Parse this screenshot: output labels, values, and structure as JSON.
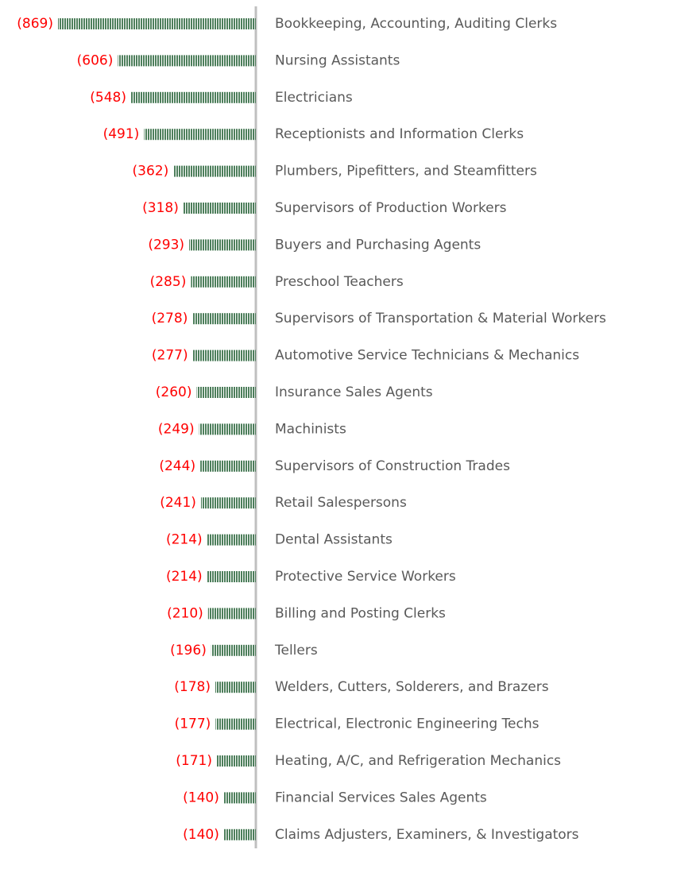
{
  "chart_data": {
    "type": "bar",
    "orientation": "horizontal",
    "categories": [
      "Bookkeeping, Accounting, Auditing Clerks",
      "Nursing Assistants",
      "Electricians",
      "Receptionists and Information Clerks",
      "Plumbers, Pipefitters, and Steamfitters",
      "Supervisors of Production Workers",
      "Buyers and Purchasing Agents",
      "Preschool Teachers",
      "Supervisors of Transportation & Material Workers",
      "Automotive Service Technicians & Mechanics",
      "Insurance Sales Agents",
      "Machinists",
      "Supervisors of Construction Trades",
      "Retail Salespersons",
      "Dental Assistants",
      "Protective Service Workers",
      "Billing and Posting Clerks",
      "Tellers",
      "Welders, Cutters, Solderers, and Brazers",
      "Electrical, Electronic Engineering Techs",
      "Heating, A/C, and Refrigeration Mechanics",
      "Financial Services Sales Agents",
      "Claims Adjusters, Examiners, & Investigators"
    ],
    "values": [
      -869,
      -606,
      -548,
      -491,
      -362,
      -318,
      -293,
      -285,
      -278,
      -277,
      -260,
      -249,
      -244,
      -241,
      -214,
      -214,
      -210,
      -196,
      -178,
      -177,
      -171,
      -140,
      -140
    ],
    "value_labels": [
      "(869)",
      "(606)",
      "(548)",
      "(491)",
      "(362)",
      "(318)",
      "(293)",
      "(285)",
      "(278)",
      "(277)",
      "(260)",
      "(249)",
      "(244)",
      "(241)",
      "(214)",
      "(214)",
      "(210)",
      "(196)",
      "(178)",
      "(177)",
      "(171)",
      "(140)",
      "(140)"
    ],
    "color": "#4e7f5c",
    "label_color": "#ff0000",
    "xlim": [
      -869,
      0
    ]
  }
}
